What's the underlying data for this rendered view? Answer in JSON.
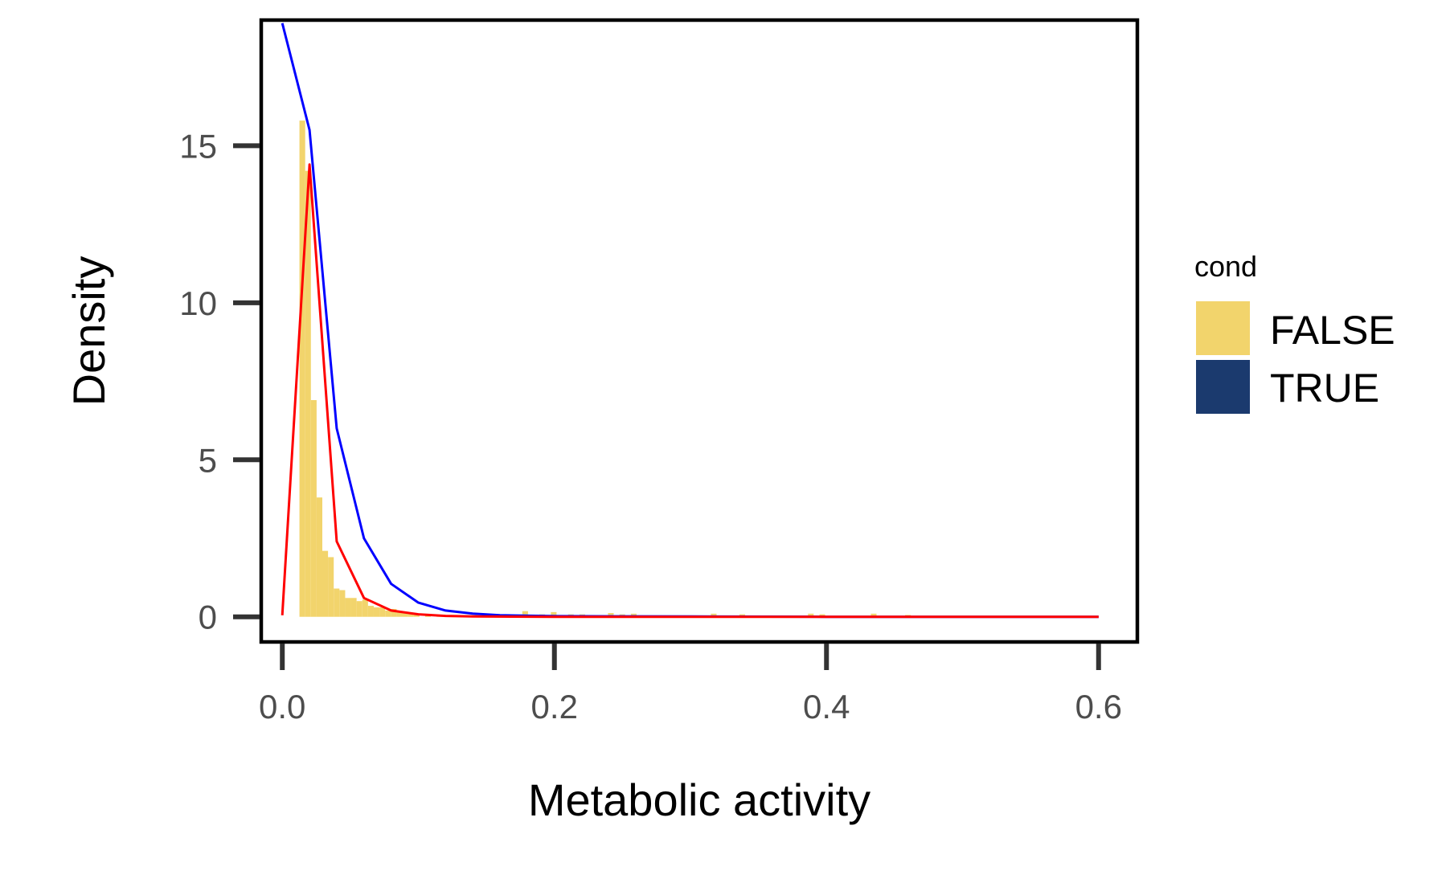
{
  "chart_data": {
    "type": "bar",
    "title": "",
    "xlabel": "Metabolic activity",
    "ylabel": "Density",
    "xlim": [
      -0.0155,
      0.6285
    ],
    "ylim": [
      -0.8,
      19.0
    ],
    "x_ticks": [
      {
        "value": 0.0,
        "label": "0.0"
      },
      {
        "value": 0.2,
        "label": "0.2"
      },
      {
        "value": 0.4,
        "label": "0.4"
      },
      {
        "value": 0.6,
        "label": "0.6"
      }
    ],
    "y_ticks": [
      {
        "value": 0,
        "label": "0"
      },
      {
        "value": 5,
        "label": "5"
      },
      {
        "value": 10,
        "label": "10"
      },
      {
        "value": 15,
        "label": "15"
      }
    ],
    "grid": false,
    "legend": {
      "title": "cond",
      "placement": "right",
      "entries": [
        {
          "label": "FALSE",
          "color": "#F2D46C"
        },
        {
          "label": "TRUE",
          "color": "#1B3A6E"
        }
      ]
    },
    "histogram": {
      "name": "FALSE",
      "color": "#F2D46C",
      "bin_width": 0.0042,
      "bins": [
        {
          "x0": 0.0126,
          "height": 15.8
        },
        {
          "x0": 0.0168,
          "height": 14.2
        },
        {
          "x0": 0.021,
          "height": 6.9
        },
        {
          "x0": 0.0252,
          "height": 3.8
        },
        {
          "x0": 0.0294,
          "height": 2.1
        },
        {
          "x0": 0.0336,
          "height": 1.9
        },
        {
          "x0": 0.0378,
          "height": 0.9
        },
        {
          "x0": 0.042,
          "height": 0.85
        },
        {
          "x0": 0.0462,
          "height": 0.6
        },
        {
          "x0": 0.0504,
          "height": 0.6
        },
        {
          "x0": 0.0546,
          "height": 0.5
        },
        {
          "x0": 0.0588,
          "height": 0.55
        },
        {
          "x0": 0.063,
          "height": 0.35
        },
        {
          "x0": 0.0672,
          "height": 0.3
        },
        {
          "x0": 0.0714,
          "height": 0.3
        },
        {
          "x0": 0.0756,
          "height": 0.2
        },
        {
          "x0": 0.0798,
          "height": 0.25
        },
        {
          "x0": 0.084,
          "height": 0.15
        },
        {
          "x0": 0.0882,
          "height": 0.15
        },
        {
          "x0": 0.0924,
          "height": 0.1
        },
        {
          "x0": 0.0966,
          "height": 0.1
        },
        {
          "x0": 0.105,
          "height": 0.08
        },
        {
          "x0": 0.1134,
          "height": 0.06
        },
        {
          "x0": 0.126,
          "height": 0.05
        },
        {
          "x0": 0.1386,
          "height": 0.05
        },
        {
          "x0": 0.1764,
          "height": 0.18
        },
        {
          "x0": 0.189,
          "height": 0.08
        },
        {
          "x0": 0.1974,
          "height": 0.15
        },
        {
          "x0": 0.21,
          "height": 0.08
        },
        {
          "x0": 0.2184,
          "height": 0.08
        },
        {
          "x0": 0.2394,
          "height": 0.12
        },
        {
          "x0": 0.2478,
          "height": 0.08
        },
        {
          "x0": 0.2562,
          "height": 0.1
        },
        {
          "x0": 0.315,
          "height": 0.1
        },
        {
          "x0": 0.336,
          "height": 0.08
        },
        {
          "x0": 0.3864,
          "height": 0.1
        },
        {
          "x0": 0.3948,
          "height": 0.08
        },
        {
          "x0": 0.4326,
          "height": 0.1
        },
        {
          "x0": 0.4578,
          "height": 0.06
        }
      ]
    },
    "lines": [
      {
        "color": "#0000FF",
        "x": [
          0.0,
          0.02,
          0.04,
          0.06,
          0.08,
          0.1,
          0.12,
          0.14,
          0.16,
          0.2,
          0.3,
          0.4,
          0.5,
          0.6
        ],
        "y": [
          18.9,
          15.5,
          6.0,
          2.5,
          1.05,
          0.45,
          0.2,
          0.1,
          0.05,
          0.02,
          0.01,
          0.0,
          0.0,
          0.0
        ]
      },
      {
        "color": "#FF0000",
        "x": [
          0.0,
          0.02,
          0.04,
          0.06,
          0.08,
          0.1,
          0.12,
          0.14,
          0.2,
          0.3,
          0.4,
          0.5,
          0.6
        ],
        "y": [
          0.05,
          14.4,
          2.4,
          0.6,
          0.2,
          0.08,
          0.03,
          0.01,
          0.0,
          0.0,
          0.0,
          0.0,
          0.0
        ]
      }
    ]
  }
}
